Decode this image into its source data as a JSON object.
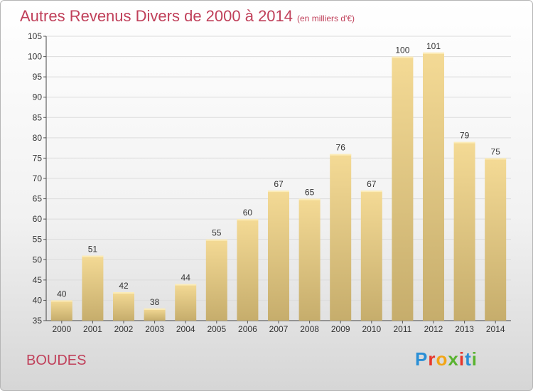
{
  "title": "Autres Revenus Divers de 2000 à 2014",
  "subtitle": "(en milliers d'€)",
  "commune": "BOUDES",
  "logo": {
    "text": "Proxiti",
    "letters": [
      "P",
      "r",
      "o",
      "x",
      "i",
      "t",
      "i"
    ],
    "colors": [
      "#2a8fd6",
      "#e6372c",
      "#f2a516",
      "#59b330",
      "#e6372c",
      "#2a8fd6",
      "#59b330"
    ]
  },
  "chart_data": {
    "type": "bar",
    "categories": [
      "2000",
      "2001",
      "2002",
      "2003",
      "2004",
      "2005",
      "2006",
      "2007",
      "2008",
      "2009",
      "2010",
      "2011",
      "2012",
      "2013",
      "2014"
    ],
    "values": [
      40,
      51,
      42,
      38,
      44,
      55,
      60,
      67,
      65,
      76,
      67,
      100,
      101,
      79,
      75
    ],
    "ylim": [
      35,
      105
    ],
    "yticks": [
      35,
      40,
      45,
      50,
      55,
      60,
      65,
      70,
      75,
      80,
      85,
      90,
      95,
      100,
      105
    ],
    "grid": true,
    "bar_color": "#e6cb86"
  }
}
